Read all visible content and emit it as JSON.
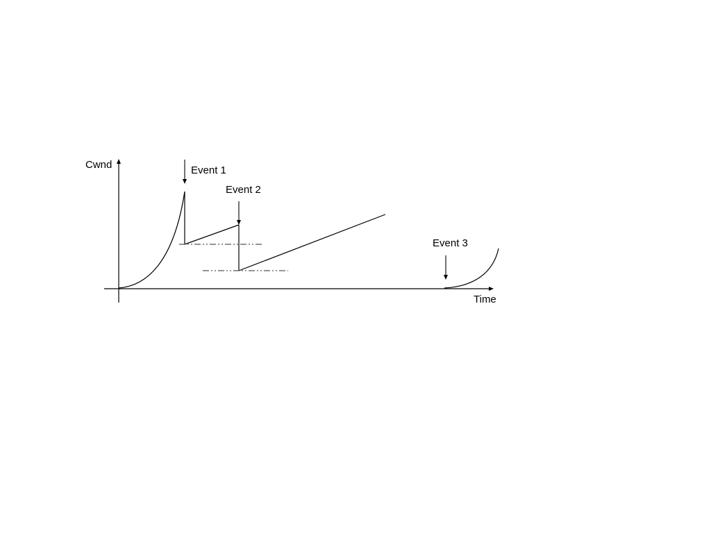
{
  "diagram": {
    "y_axis_label": "Cwnd",
    "x_axis_label": "Time",
    "events": [
      {
        "label": "Event 1"
      },
      {
        "label": "Event 2"
      },
      {
        "label": "Event 3"
      }
    ]
  },
  "colors": {
    "line": "#000000",
    "dashed_threshold": "#555555",
    "background": "#ffffff"
  }
}
